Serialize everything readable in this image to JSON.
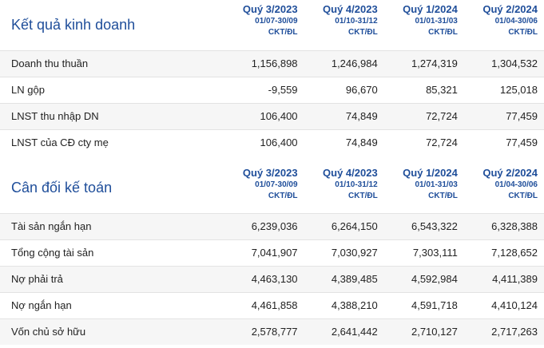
{
  "income": {
    "title": "Kết quả kinh doanh",
    "columns": [
      {
        "quarter": "Quý 3/2023",
        "range": "01/07-30/09",
        "note": "CKT/ĐL"
      },
      {
        "quarter": "Quý 4/2023",
        "range": "01/10-31/12",
        "note": "CKT/ĐL"
      },
      {
        "quarter": "Quý 1/2024",
        "range": "01/01-31/03",
        "note": "CKT/ĐL"
      },
      {
        "quarter": "Quý 2/2024",
        "range": "01/04-30/06",
        "note": "CKT/ĐL"
      }
    ],
    "rows": [
      {
        "label": "Doanh thu thuần",
        "values": [
          "1,156,898",
          "1,246,984",
          "1,274,319",
          "1,304,532"
        ]
      },
      {
        "label": "LN gộp",
        "values": [
          "-9,559",
          "96,670",
          "85,321",
          "125,018"
        ]
      },
      {
        "label": "LNST thu nhập DN",
        "values": [
          "106,400",
          "74,849",
          "72,724",
          "77,459"
        ]
      },
      {
        "label": "LNST của CĐ cty mẹ",
        "values": [
          "106,400",
          "74,849",
          "72,724",
          "77,459"
        ]
      }
    ]
  },
  "balance": {
    "title": "Cân đối kế toán",
    "columns": [
      {
        "quarter": "Quý 3/2023",
        "range": "01/07-30/09",
        "note": "CKT/ĐL"
      },
      {
        "quarter": "Quý 4/2023",
        "range": "01/10-31/12",
        "note": "CKT/ĐL"
      },
      {
        "quarter": "Quý 1/2024",
        "range": "01/01-31/03",
        "note": "CKT/ĐL"
      },
      {
        "quarter": "Quý 2/2024",
        "range": "01/04-30/06",
        "note": "CKT/ĐL"
      }
    ],
    "rows": [
      {
        "label": "Tài sản ngắn hạn",
        "values": [
          "6,239,036",
          "6,264,150",
          "6,543,322",
          "6,328,388"
        ]
      },
      {
        "label": "Tổng cộng tài sản",
        "values": [
          "7,041,907",
          "7,030,927",
          "7,303,111",
          "7,128,652"
        ]
      },
      {
        "label": "Nợ phải trả",
        "values": [
          "4,463,130",
          "4,389,485",
          "4,592,984",
          "4,411,389"
        ]
      },
      {
        "label": "Nợ ngắn hạn",
        "values": [
          "4,461,858",
          "4,388,210",
          "4,591,718",
          "4,410,124"
        ]
      },
      {
        "label": "Vốn chủ sở hữu",
        "values": [
          "2,578,777",
          "2,641,442",
          "2,710,127",
          "2,717,263"
        ]
      }
    ]
  }
}
